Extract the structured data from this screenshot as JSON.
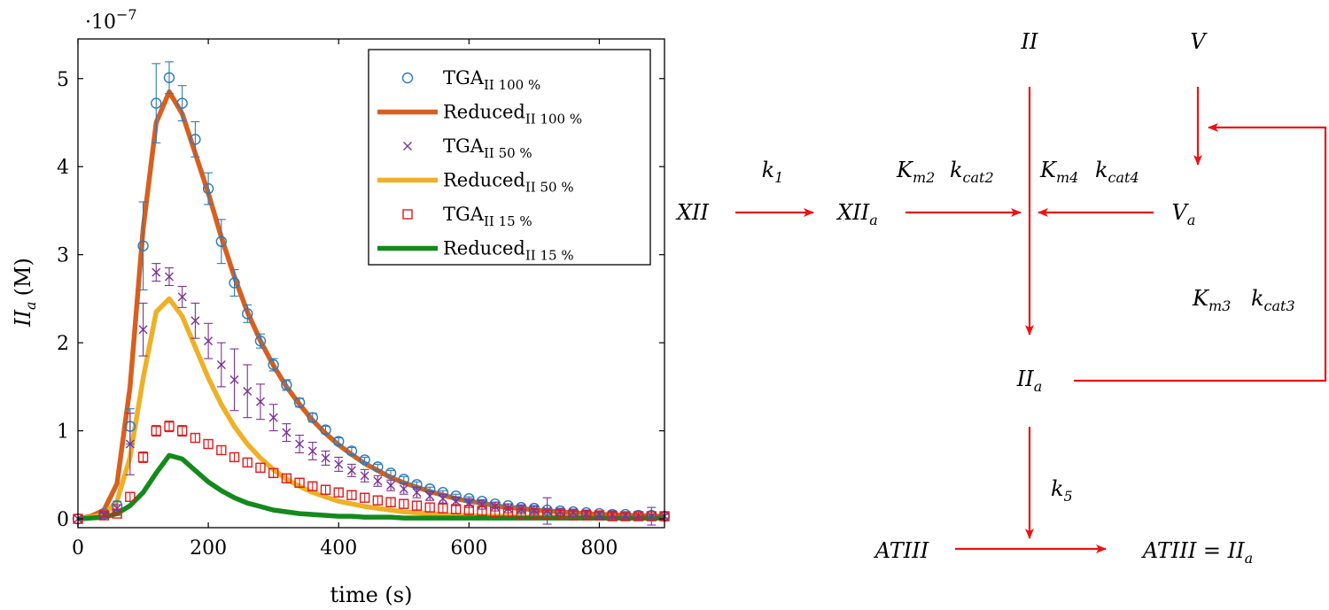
{
  "chart_data": {
    "type": "line",
    "xlabel": "time (s)",
    "ylabel_main": "II",
    "ylabel_sub": "a",
    "ylabel_unit": "(M)",
    "y_scale_label": "·10",
    "y_scale_exponent": "−7",
    "xlim": [
      0,
      900
    ],
    "ylim": [
      -0.1,
      5.45
    ],
    "xticks": [
      0,
      200,
      400,
      600,
      800
    ],
    "yticks": [
      0,
      1,
      2,
      3,
      4,
      5
    ],
    "grid": false,
    "legend_position": "top-right",
    "x_markers": [
      0,
      40,
      60,
      80,
      100,
      120,
      140,
      160,
      180,
      200,
      220,
      240,
      260,
      280,
      300,
      320,
      340,
      360,
      380,
      400,
      420,
      440,
      460,
      480,
      500,
      520,
      540,
      560,
      580,
      600,
      620,
      640,
      660,
      680,
      700,
      720,
      740,
      760,
      780,
      800,
      820,
      840,
      860,
      880,
      900
    ],
    "x_curve": [
      0,
      20,
      40,
      60,
      80,
      100,
      120,
      140,
      160,
      180,
      200,
      220,
      240,
      260,
      280,
      300,
      320,
      340,
      360,
      380,
      400,
      420,
      440,
      460,
      480,
      500,
      520,
      540,
      560,
      580,
      600,
      620,
      640,
      660,
      680,
      700,
      720,
      740,
      760,
      780,
      800,
      820,
      840,
      860,
      880,
      900
    ],
    "series": [
      {
        "name": "TGA",
        "name_sub": "II 100 %",
        "kind": "marker",
        "marker": "circle",
        "color": "#2b7bba",
        "values": [
          0,
          0.06,
          0.15,
          1.05,
          3.1,
          4.72,
          5.01,
          4.72,
          4.31,
          3.75,
          3.15,
          2.68,
          2.33,
          2.02,
          1.75,
          1.52,
          1.32,
          1.15,
          1.01,
          0.88,
          0.77,
          0.67,
          0.59,
          0.52,
          0.45,
          0.39,
          0.34,
          0.3,
          0.26,
          0.23,
          0.2,
          0.17,
          0.15,
          0.13,
          0.12,
          0.1,
          0.09,
          0.08,
          0.07,
          0.06,
          0.05,
          0.05,
          0.04,
          0.04,
          0.03
        ],
        "errors": [
          0,
          0.02,
          0.05,
          0.2,
          0.5,
          0.45,
          0.18,
          0.2,
          0.2,
          0.18,
          0.25,
          0.15,
          0.1,
          0.08,
          0.07,
          0.06,
          0.05,
          0.05,
          0.04,
          0.04,
          0.04,
          0.03,
          0.03,
          0.03,
          0.03,
          0.03,
          0.02,
          0.02,
          0.02,
          0.02,
          0.02,
          0.02,
          0.02,
          0.02,
          0.02,
          0.02,
          0.02,
          0.02,
          0.02,
          0.02,
          0.02,
          0.02,
          0.02,
          0.02,
          0.02
        ]
      },
      {
        "name": "Reduced",
        "name_sub": "II 100 %",
        "kind": "line",
        "color": "#d95f1e",
        "values": [
          0,
          0.03,
          0.1,
          0.4,
          1.5,
          3.3,
          4.5,
          4.85,
          4.6,
          4.15,
          3.7,
          3.2,
          2.75,
          2.35,
          2.02,
          1.74,
          1.5,
          1.3,
          1.12,
          0.97,
          0.84,
          0.73,
          0.63,
          0.55,
          0.47,
          0.41,
          0.36,
          0.31,
          0.27,
          0.23,
          0.2,
          0.18,
          0.15,
          0.13,
          0.12,
          0.1,
          0.09,
          0.08,
          0.07,
          0.06,
          0.05,
          0.05,
          0.04,
          0.04,
          0.03,
          0.03
        ]
      },
      {
        "name": "TGA",
        "name_sub": "II 50 %",
        "kind": "marker",
        "marker": "cross",
        "color": "#7b3294",
        "values": [
          0,
          0.05,
          0.12,
          0.85,
          2.15,
          2.8,
          2.75,
          2.52,
          2.25,
          2.02,
          1.75,
          1.58,
          1.45,
          1.33,
          1.15,
          0.98,
          0.85,
          0.77,
          0.69,
          0.62,
          0.55,
          0.49,
          0.43,
          0.38,
          0.34,
          0.3,
          0.26,
          0.23,
          0.2,
          0.18,
          0.16,
          0.14,
          0.12,
          0.11,
          0.1,
          0.09,
          0.08,
          0.07,
          0.06,
          0.05,
          0.05,
          0.04,
          0.04,
          0.03,
          0.03
        ],
        "errors": [
          0,
          0.02,
          0.04,
          0.35,
          0.3,
          0.1,
          0.1,
          0.12,
          0.2,
          0.2,
          0.25,
          0.35,
          0.3,
          0.2,
          0.15,
          0.1,
          0.1,
          0.1,
          0.08,
          0.08,
          0.07,
          0.07,
          0.06,
          0.06,
          0.06,
          0.06,
          0.05,
          0.05,
          0.05,
          0.05,
          0.05,
          0.05,
          0.05,
          0.05,
          0.05,
          0.15,
          0.04,
          0.04,
          0.04,
          0.04,
          0.04,
          0.04,
          0.04,
          0.1,
          0.04
        ]
      },
      {
        "name": "Reduced",
        "name_sub": "II 50 %",
        "kind": "line",
        "color": "#eeb027",
        "values": [
          0,
          0.02,
          0.05,
          0.2,
          0.7,
          1.6,
          2.35,
          2.5,
          2.3,
          1.95,
          1.6,
          1.3,
          1.05,
          0.85,
          0.69,
          0.56,
          0.45,
          0.37,
          0.3,
          0.25,
          0.2,
          0.17,
          0.14,
          0.12,
          0.1,
          0.08,
          0.07,
          0.06,
          0.05,
          0.04,
          0.04,
          0.03,
          0.03,
          0.03,
          0.02,
          0.02,
          0.02,
          0.02,
          0.02,
          0.02,
          0.01,
          0.01,
          0.01,
          0.01,
          0.01,
          0.01
        ]
      },
      {
        "name": "TGA",
        "name_sub": "II 15 %",
        "kind": "marker",
        "marker": "square",
        "color": "#e41a1c",
        "values": [
          0,
          0.04,
          0.06,
          0.25,
          0.7,
          1.0,
          1.05,
          1.0,
          0.92,
          0.85,
          0.78,
          0.7,
          0.64,
          0.58,
          0.52,
          0.46,
          0.41,
          0.37,
          0.33,
          0.3,
          0.27,
          0.24,
          0.21,
          0.19,
          0.17,
          0.15,
          0.13,
          0.12,
          0.11,
          0.1,
          0.09,
          0.08,
          0.07,
          0.06,
          0.06,
          0.05,
          0.05,
          0.04,
          0.04,
          0.04,
          0.03,
          0.03,
          0.03,
          0.03,
          0.03
        ],
        "errors": [
          0,
          0.02,
          0.02,
          0.05,
          0.06,
          0.06,
          0.06,
          0.06,
          0.05,
          0.05,
          0.05,
          0.05,
          0.05,
          0.05,
          0.05,
          0.05,
          0.05,
          0.05,
          0.05,
          0.05,
          0.05,
          0.05,
          0.05,
          0.05,
          0.05,
          0.05,
          0.05,
          0.05,
          0.05,
          0.05,
          0.05,
          0.05,
          0.05,
          0.05,
          0.05,
          0.05,
          0.05,
          0.05,
          0.05,
          0.05,
          0.05,
          0.05,
          0.05,
          0.05,
          0.05
        ]
      },
      {
        "name": "Reduced",
        "name_sub": "II 15 %",
        "kind": "line",
        "color": "#138a1c",
        "values": [
          0,
          0.01,
          0.02,
          0.06,
          0.15,
          0.3,
          0.52,
          0.72,
          0.68,
          0.55,
          0.42,
          0.32,
          0.24,
          0.18,
          0.14,
          0.1,
          0.08,
          0.06,
          0.05,
          0.04,
          0.03,
          0.03,
          0.02,
          0.02,
          0.02,
          0.01,
          0.01,
          0.01,
          0.01,
          0.01,
          0.01,
          0.01,
          0.01,
          0.01,
          0.01,
          0.01,
          0.01,
          0.01,
          0.01,
          0.01,
          0.01,
          0.01,
          0.01,
          0.01,
          0.01,
          0.01
        ]
      }
    ]
  },
  "diagram": {
    "nodes": {
      "II": "II",
      "V": "V",
      "XII": "XII",
      "XIIa": {
        "main": "XII",
        "sub": "a"
      },
      "Va": {
        "main": "V",
        "sub": "a"
      },
      "IIa": {
        "main": "II",
        "sub": "a"
      },
      "ATIII": "ATIII",
      "ATIII_IIa": {
        "main": "ATIII = II",
        "sub": "a"
      }
    },
    "labels": {
      "k1": {
        "main": "k",
        "sub": "1"
      },
      "k5": {
        "main": "k",
        "sub": "5"
      },
      "km2": {
        "main": "K",
        "sub": "m2"
      },
      "kcat2": {
        "main": "k",
        "sub": "cat2"
      },
      "km4": {
        "main": "K",
        "sub": "m4"
      },
      "kcat4": {
        "main": "k",
        "sub": "cat4"
      },
      "km3": {
        "main": "K",
        "sub": "m3"
      },
      "kcat3": {
        "main": "k",
        "sub": "cat3"
      }
    },
    "arrow_color": "#ee1111"
  }
}
